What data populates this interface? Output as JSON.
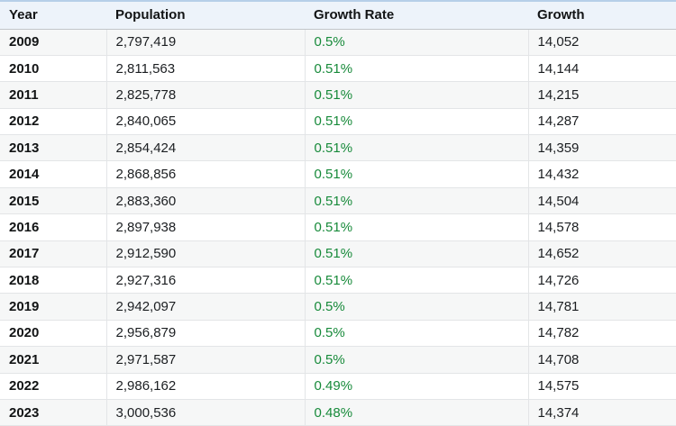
{
  "colors": {
    "header_background": "#edf3fa",
    "header_top_border": "#b6cfe8",
    "header_bottom_border": "#c2c6ca",
    "row_stripe": "#f6f7f7",
    "cell_border": "#e3e5e7",
    "growth_rate_text": "#178a3a",
    "body_text": "#1b1e21"
  },
  "chart_data": {
    "type": "table",
    "title": "",
    "columns": [
      "Year",
      "Population",
      "Growth Rate",
      "Growth"
    ],
    "rows": [
      [
        "2009",
        "2,797,419",
        "0.5%",
        "14,052"
      ],
      [
        "2010",
        "2,811,563",
        "0.51%",
        "14,144"
      ],
      [
        "2011",
        "2,825,778",
        "0.51%",
        "14,215"
      ],
      [
        "2012",
        "2,840,065",
        "0.51%",
        "14,287"
      ],
      [
        "2013",
        "2,854,424",
        "0.51%",
        "14,359"
      ],
      [
        "2014",
        "2,868,856",
        "0.51%",
        "14,432"
      ],
      [
        "2015",
        "2,883,360",
        "0.51%",
        "14,504"
      ],
      [
        "2016",
        "2,897,938",
        "0.51%",
        "14,578"
      ],
      [
        "2017",
        "2,912,590",
        "0.51%",
        "14,652"
      ],
      [
        "2018",
        "2,927,316",
        "0.51%",
        "14,726"
      ],
      [
        "2019",
        "2,942,097",
        "0.5%",
        "14,781"
      ],
      [
        "2020",
        "2,956,879",
        "0.5%",
        "14,782"
      ],
      [
        "2021",
        "2,971,587",
        "0.5%",
        "14,708"
      ],
      [
        "2022",
        "2,986,162",
        "0.49%",
        "14,575"
      ],
      [
        "2023",
        "3,000,536",
        "0.48%",
        "14,374"
      ]
    ]
  }
}
